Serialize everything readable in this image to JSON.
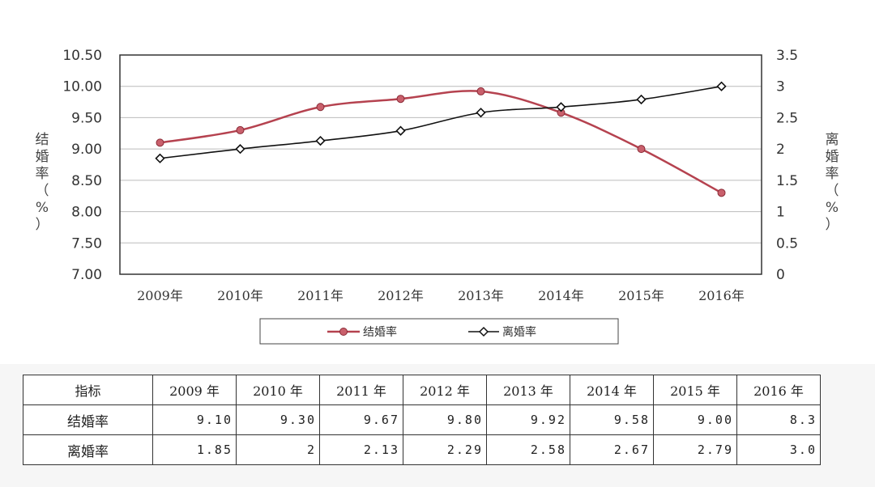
{
  "chart_data": {
    "type": "line",
    "categories": [
      "2009年",
      "2010年",
      "2011年",
      "2012年",
      "2013年",
      "2014年",
      "2015年",
      "2016年"
    ],
    "series": [
      {
        "name": "结婚率",
        "axis": "left",
        "color": "#b5424f",
        "values": [
          9.1,
          9.3,
          9.67,
          9.8,
          9.92,
          9.58,
          9.0,
          8.3
        ]
      },
      {
        "name": "离婚率",
        "axis": "right",
        "color": "#111111",
        "values": [
          1.85,
          2.0,
          2.13,
          2.29,
          2.58,
          2.67,
          2.79,
          3.0
        ]
      }
    ],
    "y_left": {
      "label": [
        "结",
        "婚",
        "率",
        "（",
        "%",
        "）"
      ],
      "ticks": [
        "10.50",
        "10.00",
        "9.50",
        "9.00",
        "8.50",
        "8.00",
        "7.50",
        "7.00"
      ],
      "range": [
        7.0,
        10.5
      ]
    },
    "y_right": {
      "label": [
        "离",
        "婚",
        "率",
        "（",
        "%",
        "）"
      ],
      "ticks": [
        "3.5",
        "3",
        "2.5",
        "2",
        "1.5",
        "1",
        "0.5",
        "0"
      ],
      "range": [
        0,
        3.5
      ]
    },
    "legend": [
      "结婚率",
      "离婚率"
    ],
    "grid": true,
    "legend_position": "bottom"
  },
  "table": {
    "header": [
      "指标",
      "2009 年",
      "2010 年",
      "2011 年",
      "2012 年",
      "2013 年",
      "2014 年",
      "2015 年",
      "2016 年"
    ],
    "rows": [
      {
        "label": "结婚率",
        "cells": [
          "9.10",
          "9.30",
          "9.67",
          "9.80",
          "9.92",
          "9.58",
          "9.00",
          "8.3"
        ]
      },
      {
        "label": "离婚率",
        "cells": [
          "1.85",
          "2",
          "2.13",
          "2.29",
          "2.58",
          "2.67",
          "2.79",
          "3.0"
        ]
      }
    ]
  }
}
